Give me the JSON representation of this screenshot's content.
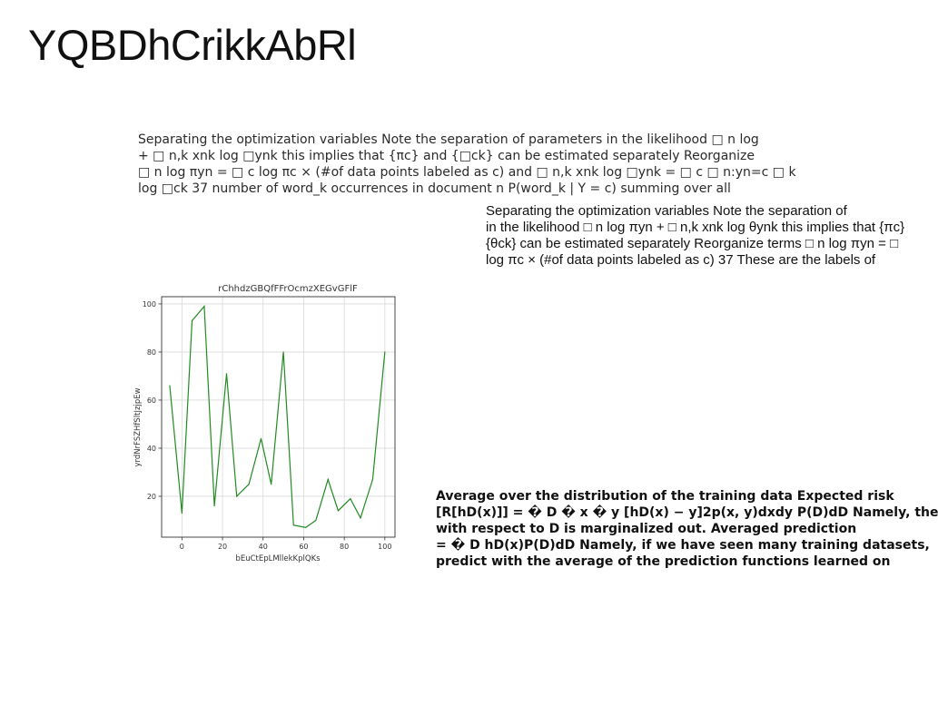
{
  "page": {
    "title": "YQBDhCrikkAbRl"
  },
  "paragraph_1": {
    "lines": [
      "Separating the optimization variables Note the separation of parameters in the likelihood □ n log",
      "+ □ n,k xnk log □ynk this implies that {πc} and {□ck} can be estimated separately Reorganize",
      "□ n log πyn = □ c log πc × (#of data points labeled as c) and □ n,k xnk log □ynk = □ c □ n:yn=c □ k",
      "log □ck 37 number of word_k occurrences in document n P(word_k | Y = c) summing over all"
    ]
  },
  "paragraph_2": {
    "lines": [
      "Separating the optimization variables Note the separation of",
      "in the likelihood □ n log πyn + □ n,k xnk log θynk this implies that {πc}",
      "{θck} can be estimated separately Reorganize terms □ n log πyn = □",
      "log πc × (#of data points labeled as c) 37 These are the labels of"
    ]
  },
  "paragraph_3": {
    "lines": [
      "Average over the distribution of the training data Expected risk",
      "[R[hD(x)]] = � D � x � y [hD(x) − y]2p(x, y)dxdy P(D)dD Namely, the",
      "with respect to D is marginalized out. Averaged prediction",
      "= � D hD(x)P(D)dD Namely, if we have seen many training datasets,",
      "predict with the average of the prediction functions learned on"
    ]
  },
  "chart_data": {
    "type": "line",
    "title": "rChhdzGBQfFFrOcmzXEGvGFlF",
    "xlabel": "bEuCtEpLMllekKplQKs",
    "ylabel": "yrdNrFSZHfSltJzjpEw",
    "xlim": [
      -10,
      105
    ],
    "ylim": [
      3,
      103
    ],
    "xticks": [
      "0",
      "20",
      "40",
      "60",
      "80",
      "100"
    ],
    "xtick_values": [
      0,
      20,
      40,
      60,
      80,
      100
    ],
    "yticks": [
      "20",
      "40",
      "60",
      "80",
      "100"
    ],
    "ytick_values": [
      20,
      40,
      60,
      80,
      100
    ],
    "grid": true,
    "series": [
      {
        "color": "#228b22",
        "x": [
          -6,
          0,
          5,
          11,
          16,
          22,
          27,
          33,
          39,
          44,
          50,
          55,
          61,
          66,
          72,
          77,
          83,
          88,
          94,
          100
        ],
        "y": [
          66,
          13,
          93,
          99,
          16,
          71,
          20,
          25,
          44,
          25,
          80,
          8,
          7,
          10,
          27,
          14,
          19,
          11,
          27,
          80
        ]
      }
    ]
  }
}
